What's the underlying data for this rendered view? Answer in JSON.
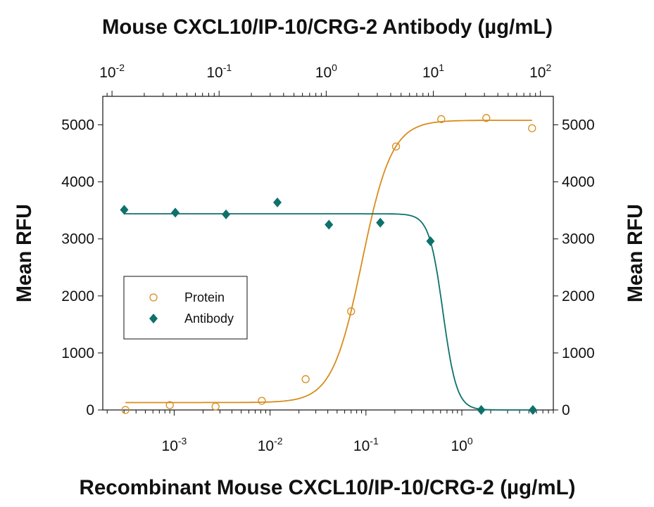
{
  "chart_data": {
    "type": "scatter",
    "title": "Mouse CXCL10/IP-10/CRG-2 Antibody (µg/mL)",
    "xlabel": "Recombinant Mouse CXCL10/IP-10/CRG-2 (µg/mL)",
    "ylabel": "Mean RFU",
    "ylabel_right": "Mean RFU",
    "x_scale": "log",
    "x_top_scale": "log",
    "xlim": [
      0.00018,
      9.0
    ],
    "x_top_lim": [
      0.0082,
      132
    ],
    "ylim": [
      0,
      5500
    ],
    "x_ticks": [
      {
        "base": "10",
        "exp": "-3"
      },
      {
        "base": "10",
        "exp": "-2"
      },
      {
        "base": "10",
        "exp": "-1"
      },
      {
        "base": "10",
        "exp": "0"
      }
    ],
    "x_top_ticks": [
      {
        "base": "10",
        "exp": "-2"
      },
      {
        "base": "10",
        "exp": "-1"
      },
      {
        "base": "10",
        "exp": "0"
      },
      {
        "base": "10",
        "exp": "1"
      },
      {
        "base": "10",
        "exp": "2"
      }
    ],
    "y_ticks": [
      "0",
      "1000",
      "2000",
      "3000",
      "4000",
      "5000"
    ],
    "grid": false,
    "legend_placement": "center-left",
    "series": [
      {
        "name": "Protein",
        "axis": "bottom",
        "marker": "open-circle",
        "color": "#D98C1C",
        "x": [
          0.00031,
          0.0009,
          0.0027,
          0.0082,
          0.0235,
          0.07,
          0.206,
          0.61,
          1.8,
          5.4
        ],
        "y": [
          0,
          85,
          60,
          160,
          540,
          1730,
          4620,
          5100,
          5120,
          4940
        ]
      },
      {
        "name": "Antibody",
        "axis": "top",
        "marker": "filled-diamond",
        "color": "#0E716C",
        "x": [
          0.013,
          0.039,
          0.116,
          0.35,
          1.06,
          3.2,
          9.4,
          28,
          85
        ],
        "y": [
          3510,
          3460,
          3430,
          3640,
          3250,
          3285,
          2960,
          0,
          0
        ]
      }
    ]
  }
}
